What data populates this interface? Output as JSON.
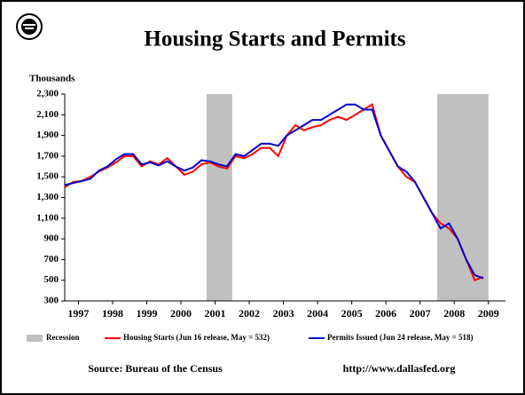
{
  "chart_data": {
    "type": "line",
    "title": "Housing Starts and Permits",
    "y_label": "Thousands",
    "source": "Source: Bureau of the Census",
    "url": "http://www.dallasfed.org",
    "recession": {
      "name": "Recession",
      "color": "#c0c0c0",
      "spans": [
        [
          2001.25,
          2002.0
        ],
        [
          2008.0,
          2009.5
        ]
      ]
    },
    "x": [
      1997.1,
      1997.35,
      1997.6,
      1997.85,
      1998.1,
      1998.35,
      1998.6,
      1998.85,
      1999.1,
      1999.35,
      1999.6,
      1999.85,
      2000.1,
      2000.35,
      2000.6,
      2000.85,
      2001.1,
      2001.35,
      2001.6,
      2001.85,
      2002.1,
      2002.35,
      2002.6,
      2002.85,
      2003.1,
      2003.35,
      2003.6,
      2003.85,
      2004.1,
      2004.35,
      2004.6,
      2004.85,
      2005.1,
      2005.35,
      2005.6,
      2005.85,
      2006.1,
      2006.35,
      2006.6,
      2006.85,
      2007.1,
      2007.35,
      2007.6,
      2007.85,
      2008.1,
      2008.35,
      2008.6,
      2008.85,
      2009.1,
      2009.35
    ],
    "series": [
      {
        "name": "Housing Starts (Jun 16 release, May = 532)",
        "color": "#ff0000",
        "values": [
          1400,
          1450,
          1460,
          1500,
          1550,
          1590,
          1640,
          1700,
          1700,
          1600,
          1650,
          1620,
          1680,
          1600,
          1520,
          1550,
          1620,
          1640,
          1600,
          1580,
          1700,
          1680,
          1720,
          1780,
          1780,
          1700,
          1900,
          2000,
          1950,
          1980,
          2000,
          2050,
          2080,
          2050,
          2100,
          2150,
          2200,
          1900,
          1750,
          1600,
          1500,
          1450,
          1300,
          1150,
          1050,
          1000,
          900,
          700,
          500,
          532
        ]
      },
      {
        "name": "Permits Issued (Jun 24 release, May = 518)",
        "color": "#0000cc",
        "values": [
          1420,
          1440,
          1460,
          1480,
          1560,
          1600,
          1670,
          1720,
          1720,
          1620,
          1640,
          1610,
          1650,
          1600,
          1560,
          1590,
          1660,
          1650,
          1620,
          1600,
          1720,
          1700,
          1760,
          1820,
          1820,
          1800,
          1900,
          1950,
          2000,
          2050,
          2050,
          2100,
          2150,
          2200,
          2200,
          2150,
          2150,
          1900,
          1750,
          1600,
          1550,
          1450,
          1300,
          1150,
          1000,
          1050,
          900,
          700,
          550,
          518
        ]
      }
    ],
    "xlim": [
      1997.1,
      2010.0
    ],
    "xticks": [
      {
        "value": 1997.5,
        "label": "1997"
      },
      {
        "value": 1998.5,
        "label": "1998"
      },
      {
        "value": 1999.5,
        "label": "1999"
      },
      {
        "value": 2000.5,
        "label": "2000"
      },
      {
        "value": 2001.5,
        "label": "2001"
      },
      {
        "value": 2002.5,
        "label": "2002"
      },
      {
        "value": 2003.5,
        "label": "2003"
      },
      {
        "value": 2004.5,
        "label": "2004"
      },
      {
        "value": 2005.5,
        "label": "2005"
      },
      {
        "value": 2006.5,
        "label": "2006"
      },
      {
        "value": 2007.5,
        "label": "2007"
      },
      {
        "value": 2008.5,
        "label": "2008"
      },
      {
        "value": 2009.5,
        "label": "2009"
      }
    ],
    "ylim": [
      300,
      2300
    ],
    "yticks": [
      300,
      500,
      700,
      900,
      {
        "value": 1100,
        "label": "1,100"
      },
      {
        "value": 1300,
        "label": "1,300"
      },
      {
        "value": 1500,
        "label": "1,500"
      },
      {
        "value": 1700,
        "label": "1,700"
      },
      {
        "value": 1900,
        "label": "1,900"
      },
      {
        "value": 2100,
        "label": "2,100"
      },
      {
        "value": 2300,
        "label": "2,300"
      }
    ]
  }
}
